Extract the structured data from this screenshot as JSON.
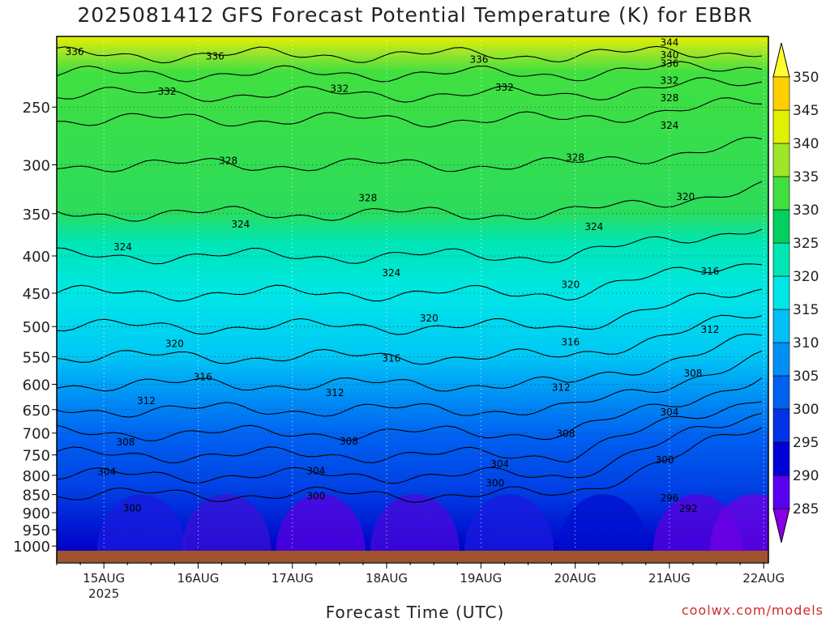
{
  "chart_data": {
    "type": "heatmap",
    "title": "2025081412 GFS Forecast Potential Temperature (K) for EBBR",
    "xlabel": "Forecast Time (UTC)",
    "ylabel": "",
    "credit": "coolwx.com/models",
    "x_axis": {
      "tick_labels": [
        "15AUG",
        "16AUG",
        "17AUG",
        "18AUG",
        "19AUG",
        "20AUG",
        "21AUG",
        "22AUG"
      ],
      "tick_days": [
        15,
        16,
        17,
        18,
        19,
        20,
        21,
        22
      ],
      "year_label": "2025",
      "range_days": [
        14.5,
        22.05
      ]
    },
    "y_axis": {
      "scale": "log",
      "inverted": true,
      "tick_labels": [
        "250",
        "300",
        "350",
        "400",
        "450",
        "500",
        "550",
        "600",
        "650",
        "700",
        "750",
        "800",
        "850",
        "900",
        "950",
        "1000"
      ],
      "tick_values": [
        250,
        300,
        350,
        400,
        450,
        500,
        550,
        600,
        650,
        700,
        750,
        800,
        850,
        900,
        950,
        1000
      ],
      "range_hpa": [
        200,
        1015
      ]
    },
    "grid": "dotted",
    "colorbar": {
      "tick_labels": [
        "350",
        "345",
        "340",
        "335",
        "330",
        "325",
        "320",
        "315",
        "310",
        "305",
        "300",
        "295",
        "290",
        "285"
      ],
      "levels": [
        285,
        290,
        295,
        300,
        305,
        310,
        315,
        320,
        325,
        330,
        335,
        340,
        345,
        350
      ],
      "colors": [
        "#8a00e6",
        "#5a00f0",
        "#0000d8",
        "#0033e6",
        "#0060f0",
        "#0090f5",
        "#00c0f5",
        "#00e6e6",
        "#00e6b4",
        "#00d060",
        "#40e040",
        "#a0e628",
        "#e0f000",
        "#ffd000",
        "#ffff30"
      ]
    },
    "ground_color": "#a0522d",
    "contour_labels": [
      {
        "text": "336",
        "day": 14.69,
        "p": 210
      },
      {
        "text": "336",
        "day": 16.18,
        "p": 213
      },
      {
        "text": "336",
        "day": 18.98,
        "p": 215
      },
      {
        "text": "344",
        "day": 21.0,
        "p": 204
      },
      {
        "text": "340",
        "day": 21.0,
        "p": 212
      },
      {
        "text": "336",
        "day": 21.0,
        "p": 218
      },
      {
        "text": "332",
        "day": 21.0,
        "p": 230
      },
      {
        "text": "328",
        "day": 21.0,
        "p": 243
      },
      {
        "text": "324",
        "day": 21.0,
        "p": 265
      },
      {
        "text": "332",
        "day": 15.67,
        "p": 238
      },
      {
        "text": "332",
        "day": 17.5,
        "p": 236
      },
      {
        "text": "332",
        "day": 19.25,
        "p": 235
      },
      {
        "text": "328",
        "day": 16.32,
        "p": 296
      },
      {
        "text": "328",
        "day": 17.8,
        "p": 333
      },
      {
        "text": "328",
        "day": 20.0,
        "p": 293
      },
      {
        "text": "324",
        "day": 15.2,
        "p": 389
      },
      {
        "text": "324",
        "day": 16.45,
        "p": 362
      },
      {
        "text": "324",
        "day": 18.05,
        "p": 422
      },
      {
        "text": "324",
        "day": 20.2,
        "p": 365
      },
      {
        "text": "320",
        "day": 21.17,
        "p": 332
      },
      {
        "text": "320",
        "day": 15.75,
        "p": 528
      },
      {
        "text": "320",
        "day": 18.45,
        "p": 487
      },
      {
        "text": "320",
        "day": 19.95,
        "p": 438
      },
      {
        "text": "316",
        "day": 21.43,
        "p": 420
      },
      {
        "text": "316",
        "day": 16.05,
        "p": 586
      },
      {
        "text": "316",
        "day": 18.05,
        "p": 553
      },
      {
        "text": "316",
        "day": 19.95,
        "p": 525
      },
      {
        "text": "312",
        "day": 21.43,
        "p": 505
      },
      {
        "text": "312",
        "day": 15.45,
        "p": 632
      },
      {
        "text": "312",
        "day": 17.45,
        "p": 616
      },
      {
        "text": "312",
        "day": 19.85,
        "p": 606
      },
      {
        "text": "308",
        "day": 21.25,
        "p": 580
      },
      {
        "text": "308",
        "day": 15.23,
        "p": 720
      },
      {
        "text": "308",
        "day": 17.6,
        "p": 719
      },
      {
        "text": "308",
        "day": 19.9,
        "p": 701
      },
      {
        "text": "304",
        "day": 21.0,
        "p": 655
      },
      {
        "text": "304",
        "day": 15.03,
        "p": 791
      },
      {
        "text": "304",
        "day": 17.25,
        "p": 789
      },
      {
        "text": "304",
        "day": 19.2,
        "p": 772
      },
      {
        "text": "300",
        "day": 20.95,
        "p": 762
      },
      {
        "text": "300",
        "day": 15.3,
        "p": 888
      },
      {
        "text": "300",
        "day": 17.25,
        "p": 854
      },
      {
        "text": "300",
        "day": 19.15,
        "p": 820
      },
      {
        "text": "296",
        "day": 21.0,
        "p": 859
      },
      {
        "text": "292",
        "day": 21.2,
        "p": 889
      }
    ]
  }
}
